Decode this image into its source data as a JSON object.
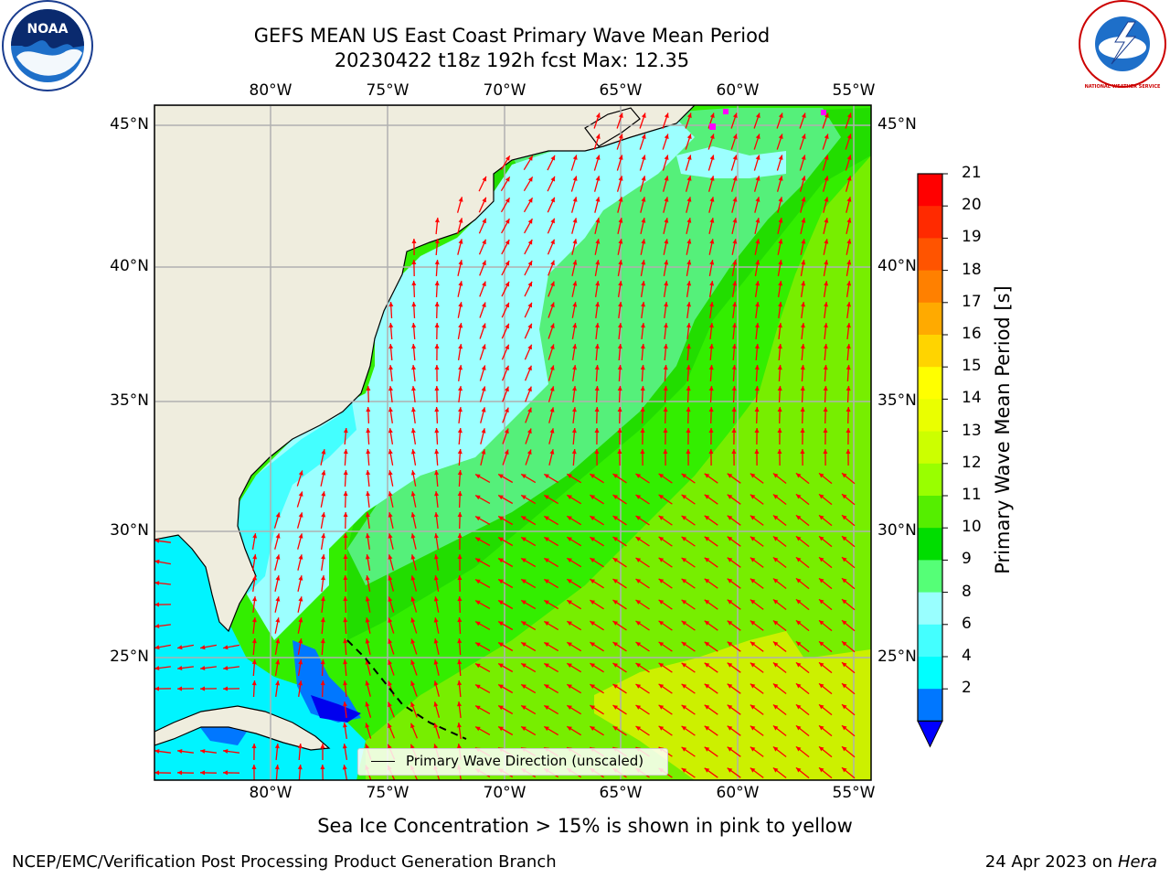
{
  "header": {
    "title_line1": "GEFS MEAN US East Coast Primary Wave Mean Period",
    "title_line2": "20230422 t18z 192h fcst   Max: 12.35"
  },
  "map": {
    "lon_labels": [
      "80°W",
      "75°W",
      "70°W",
      "65°W",
      "60°W",
      "55°W"
    ],
    "lat_labels": [
      "45°N",
      "40°N",
      "35°N",
      "30°N",
      "25°N"
    ],
    "legend_label": "Primary Wave Direction (unscaled)",
    "arrow_color": "#ff0000",
    "land_color": "#efedde"
  },
  "colorbar": {
    "title": "Primary Wave Mean Period [s]",
    "ticks": [
      "21",
      "20",
      "19",
      "18",
      "17",
      "16",
      "15",
      "14",
      "13",
      "12",
      "11",
      "10",
      "9",
      "8",
      "6",
      "4",
      "2"
    ],
    "colors": [
      "#ff0000",
      "#ff2a00",
      "#ff5400",
      "#ff8000",
      "#ffaa00",
      "#ffd400",
      "#ffff00",
      "#eaff00",
      "#ccff00",
      "#99ff00",
      "#55ee00",
      "#00dd00",
      "#55ff77",
      "#99ffff",
      "#44ffff",
      "#00ffff",
      "#0077ff"
    ],
    "under_color": "#0000ff"
  },
  "caption": "Sea Ice Concentration > 15% is shown in pink to yellow",
  "footer": {
    "left": "NCEP/EMC/Verification Post Processing Product Generation Branch",
    "date": "24 Apr 2023 on ",
    "host": "Hera"
  },
  "logos": {
    "noaa_text": "NOAA",
    "nws_text": "NATIONAL WEATHER SERVICE"
  }
}
